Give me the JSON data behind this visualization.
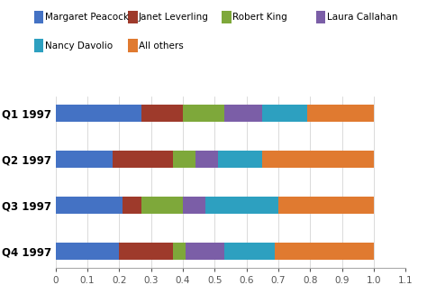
{
  "categories": [
    "Q1 1997",
    "Q2 1997",
    "Q3 1997",
    "Q4 1997"
  ],
  "series": [
    {
      "name": "Margaret Peacock",
      "color": "#4472C4",
      "values": [
        0.27,
        0.18,
        0.21,
        0.2
      ]
    },
    {
      "name": "Janet Leverling",
      "color": "#9E3A2B",
      "values": [
        0.13,
        0.19,
        0.06,
        0.17
      ]
    },
    {
      "name": "Robert King",
      "color": "#7EA83A",
      "values": [
        0.13,
        0.07,
        0.13,
        0.04
      ]
    },
    {
      "name": "Laura Callahan",
      "color": "#7B5EA7",
      "values": [
        0.12,
        0.07,
        0.07,
        0.12
      ]
    },
    {
      "name": "Nancy Davolio",
      "color": "#2DA0C0",
      "values": [
        0.14,
        0.14,
        0.23,
        0.16
      ]
    },
    {
      "name": "All others",
      "color": "#E07A30",
      "values": [
        0.21,
        0.35,
        0.3,
        0.31
      ]
    }
  ],
  "legend_row1": [
    "Margaret Peacock",
    "Janet Leverling",
    "Robert King",
    "Laura Callahan"
  ],
  "legend_row2": [
    "Nancy Davolio",
    "All others"
  ],
  "xlim": [
    0,
    1.1
  ],
  "xticks": [
    0,
    0.1,
    0.2,
    0.3,
    0.4,
    0.5,
    0.6,
    0.7,
    0.8,
    0.9,
    1.0,
    1.1
  ],
  "background_color": "#FFFFFF",
  "legend_fontsize": 7.5,
  "axis_fontsize": 8.5,
  "bar_height": 0.38
}
